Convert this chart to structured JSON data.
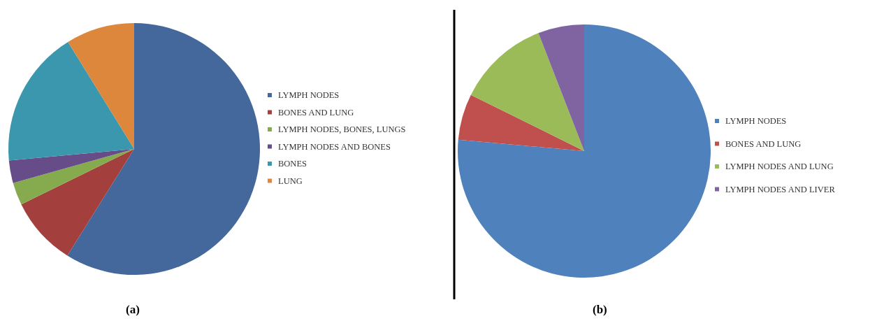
{
  "chart_data": [
    {
      "type": "pie",
      "categories": [
        "LYMPH NODES",
        "BONES AND LUNG",
        "LYMPH NODES, BONES, LUNGS",
        "LYMPH NODES AND BONES",
        "BONES",
        "LUNG"
      ],
      "values": [
        58.8,
        8.8,
        2.9,
        2.9,
        17.6,
        8.8
      ],
      "colors": [
        "#45689c",
        "#a3403d",
        "#86ab4e",
        "#664c88",
        "#3a97ad",
        "#dc873c"
      ],
      "legend": "right",
      "annotations": [
        "(a)"
      ]
    },
    {
      "type": "pie",
      "categories": [
        "LYMPH NODES",
        "BONES AND LUNG",
        "LYMPH NODES AND LUNG",
        "LYMPH NODES AND LIVER"
      ],
      "values": [
        76.5,
        5.9,
        11.8,
        5.9
      ],
      "colors": [
        "#4f81bd",
        "#c0504d",
        "#9bbb59",
        "#8064a2"
      ],
      "legend": "right",
      "annotations": [
        "(b)"
      ]
    }
  ]
}
